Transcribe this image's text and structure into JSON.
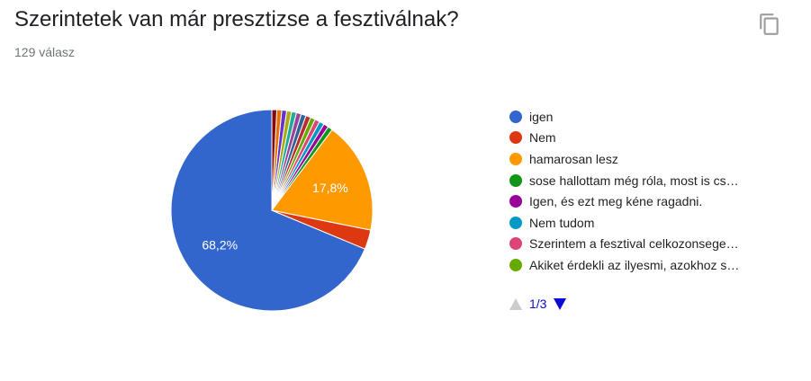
{
  "header": {
    "title": "Szerintetek van már presztizse a fesztiválnak?",
    "response_count": "129 válasz",
    "copy_icon": "copy-icon"
  },
  "chart_data": {
    "type": "pie",
    "start_angle_deg": 90,
    "direction": "counterclockwise",
    "slices": [
      {
        "label": "igen",
        "value": 68.2,
        "color": "#3366cc",
        "data_label": "68,2%"
      },
      {
        "label": "Nem",
        "value": 3.1,
        "color": "#dc3912",
        "data_label": ""
      },
      {
        "label": "hamarosan lesz",
        "value": 17.8,
        "color": "#ff9900",
        "data_label": "17,8%"
      },
      {
        "label": "sose hallottam még róla, most is cs…",
        "value": 0.78,
        "color": "#109618",
        "data_label": ""
      },
      {
        "label": "Igen, és ezt meg kéne ragadni.",
        "value": 0.78,
        "color": "#990099",
        "data_label": ""
      },
      {
        "label": "Nem tudom",
        "value": 0.78,
        "color": "#0099c6",
        "data_label": ""
      },
      {
        "label": "Szerintem a fesztival celkozonsege…",
        "value": 0.78,
        "color": "#dd4477",
        "data_label": ""
      },
      {
        "label": "Akiket érdekli az ilyesmi, azokhoz s…",
        "value": 0.78,
        "color": "#66aa00",
        "data_label": ""
      },
      {
        "label": "",
        "value": 0.78,
        "color": "#b82e2e",
        "data_label": ""
      },
      {
        "label": "",
        "value": 0.78,
        "color": "#316395",
        "data_label": ""
      },
      {
        "label": "",
        "value": 0.78,
        "color": "#994499",
        "data_label": ""
      },
      {
        "label": "",
        "value": 0.78,
        "color": "#22aa99",
        "data_label": ""
      },
      {
        "label": "",
        "value": 0.78,
        "color": "#aaaa11",
        "data_label": ""
      },
      {
        "label": "",
        "value": 0.78,
        "color": "#6633cc",
        "data_label": ""
      },
      {
        "label": "",
        "value": 0.78,
        "color": "#e67300",
        "data_label": ""
      },
      {
        "label": "",
        "value": 0.78,
        "color": "#8b0707",
        "data_label": ""
      }
    ],
    "legend_placement": "right",
    "legend_visible_count": 8
  },
  "pager": {
    "label": "1/3",
    "prev_icon": "triangle-up-icon",
    "next_icon": "triangle-down-icon"
  }
}
